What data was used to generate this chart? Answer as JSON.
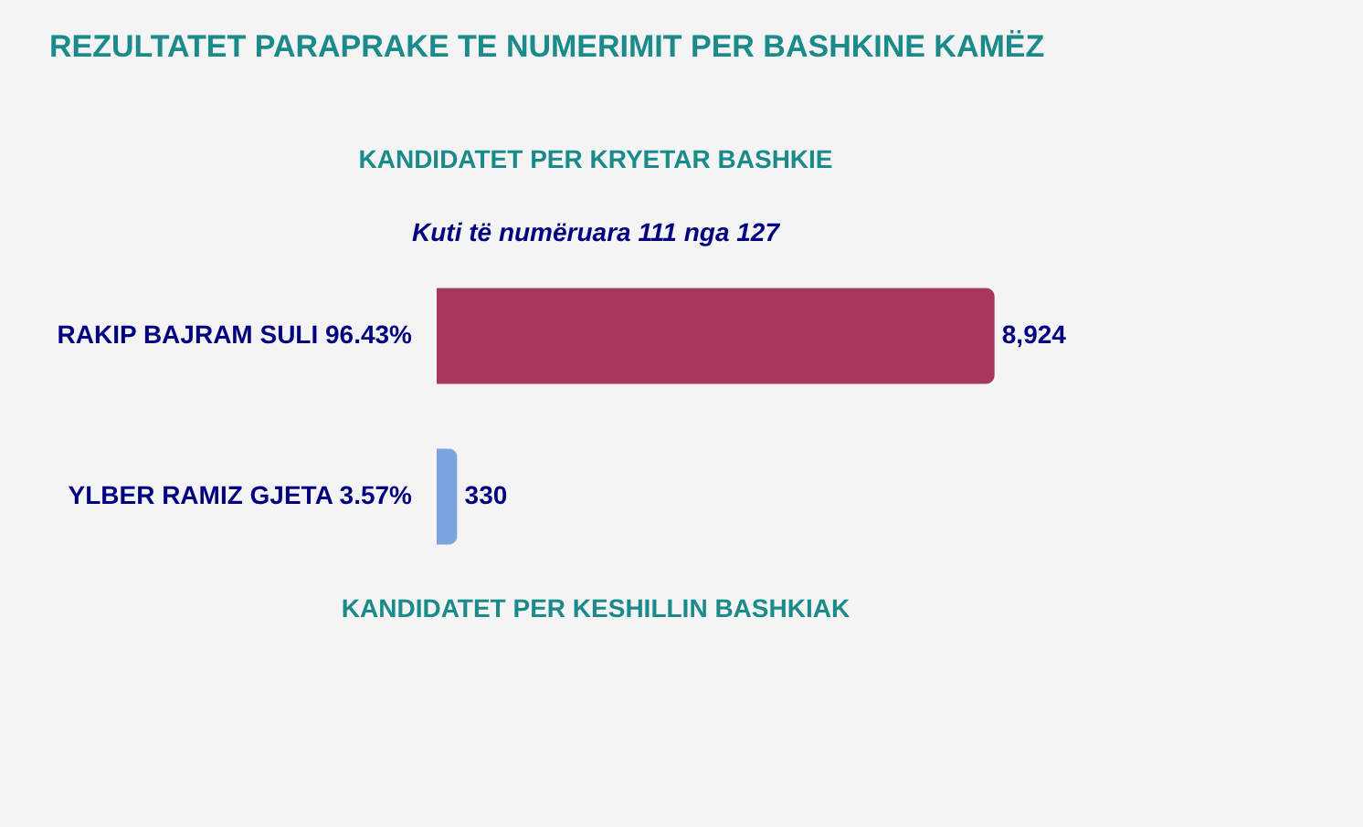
{
  "chart_data": {
    "type": "bar",
    "orientation": "horizontal",
    "title": "REZULTATET PARAPRAKE TE NUMERIMIT PER BASHKINE KAMËZ",
    "subtitle": "KANDIDATET PER KRYETAR BASHKIE",
    "annotations": [
      "Kuti të numëruara 111 nga 127",
      "KANDIDATET PER KESHILLIN BASHKIAK"
    ],
    "categories": [
      "RAKIP BAJRAM SULI 96.43%",
      "YLBER RAMIZ GJETA 3.57%"
    ],
    "values": [
      8924,
      330
    ],
    "colors": [
      "#a8385c",
      "#7ba3e0"
    ],
    "value_labels": [
      "8,924",
      "330"
    ],
    "legend": false
  }
}
